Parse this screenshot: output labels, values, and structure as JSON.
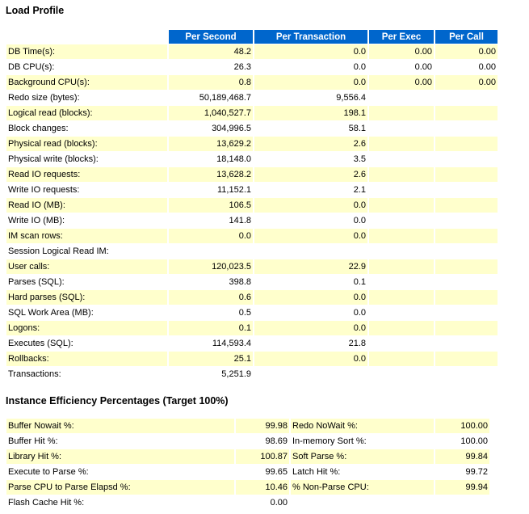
{
  "load_profile": {
    "title": "Load Profile",
    "headers": [
      "",
      "Per Second",
      "Per Transaction",
      "Per Exec",
      "Per Call"
    ],
    "rows": [
      [
        "DB Time(s):",
        "48.2",
        "0.0",
        "0.00",
        "0.00"
      ],
      [
        "DB CPU(s):",
        "26.3",
        "0.0",
        "0.00",
        "0.00"
      ],
      [
        "Background CPU(s):",
        "0.8",
        "0.0",
        "0.00",
        "0.00"
      ],
      [
        "Redo size (bytes):",
        "50,189,468.7",
        "9,556.4",
        "",
        ""
      ],
      [
        "Logical read (blocks):",
        "1,040,527.7",
        "198.1",
        "",
        ""
      ],
      [
        "Block changes:",
        "304,996.5",
        "58.1",
        "",
        ""
      ],
      [
        "Physical read (blocks):",
        "13,629.2",
        "2.6",
        "",
        ""
      ],
      [
        "Physical write (blocks):",
        "18,148.0",
        "3.5",
        "",
        ""
      ],
      [
        "Read IO requests:",
        "13,628.2",
        "2.6",
        "",
        ""
      ],
      [
        "Write IO requests:",
        "11,152.1",
        "2.1",
        "",
        ""
      ],
      [
        "Read IO (MB):",
        "106.5",
        "0.0",
        "",
        ""
      ],
      [
        "Write IO (MB):",
        "141.8",
        "0.0",
        "",
        ""
      ],
      [
        "IM scan rows:",
        "0.0",
        "0.0",
        "",
        ""
      ],
      [
        "Session Logical Read IM:",
        "",
        "",
        "",
        ""
      ],
      [
        "User calls:",
        "120,023.5",
        "22.9",
        "",
        ""
      ],
      [
        "Parses (SQL):",
        "398.8",
        "0.1",
        "",
        ""
      ],
      [
        "Hard parses (SQL):",
        "0.6",
        "0.0",
        "",
        ""
      ],
      [
        "SQL Work Area (MB):",
        "0.5",
        "0.0",
        "",
        ""
      ],
      [
        "Logons:",
        "0.1",
        "0.0",
        "",
        ""
      ],
      [
        "Executes (SQL):",
        "114,593.4",
        "21.8",
        "",
        ""
      ],
      [
        "Rollbacks:",
        "25.1",
        "0.0",
        "",
        ""
      ],
      [
        "Transactions:",
        "5,251.9",
        "",
        "",
        ""
      ]
    ]
  },
  "instance_efficiency": {
    "title": "Instance Efficiency Percentages (Target 100%)",
    "rows": [
      [
        "Buffer Nowait %:",
        "99.98",
        "Redo NoWait %:",
        "100.00"
      ],
      [
        "Buffer Hit %:",
        "98.69",
        "In-memory Sort %:",
        "100.00"
      ],
      [
        "Library Hit %:",
        "100.87",
        "Soft Parse %:",
        "99.84"
      ],
      [
        "Execute to Parse %:",
        "99.65",
        "Latch Hit %:",
        "99.72"
      ],
      [
        "Parse CPU to Parse Elapsd %:",
        "10.46",
        "% Non-Parse CPU:",
        "99.94"
      ],
      [
        "Flash Cache Hit %:",
        "0.00",
        "",
        ""
      ]
    ]
  },
  "colors": {
    "header_bg": "#0066cc",
    "header_fg": "#ffffff",
    "row_highlight": "#ffffcc"
  }
}
